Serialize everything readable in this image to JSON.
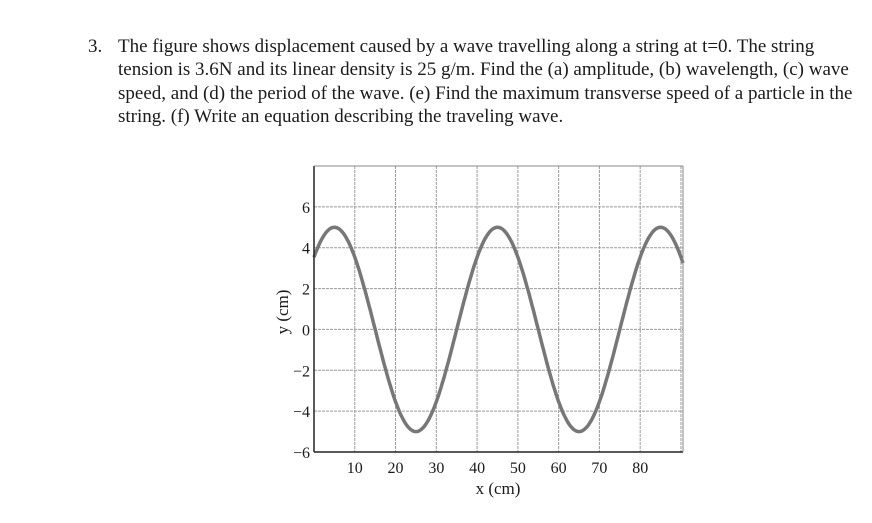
{
  "problem": {
    "number": "3.",
    "text": "The figure shows displacement caused by a wave travelling along a string at t=0. The string tension is 3.6N and its linear density is 25 g/m. Find the (a) amplitude, (b) wavelength, (c) wave speed, and (d) the period of the wave. (e) Find the maximum transverse speed of a particle in the string. (f) Write an equation describing the traveling wave."
  },
  "chart_data": {
    "type": "line",
    "title": "",
    "xlabel": "x (cm)",
    "ylabel": "y (cm)",
    "xlim": [
      0,
      90.5
    ],
    "ylim": [
      -6,
      8
    ],
    "grid": true,
    "x_ticks": [
      "10",
      "20",
      "30",
      "40",
      "50",
      "60",
      "70",
      "80"
    ],
    "y_ticks": [
      "6",
      "4",
      "2",
      "0",
      "−2",
      "−4",
      "−6"
    ],
    "series": [
      {
        "function": "y = 5 cos(2π(x − 5)/40)",
        "amplitude": 5,
        "wavelength": 40,
        "peak_x": [
          5,
          45,
          85
        ],
        "trough_x": [
          25,
          65
        ],
        "color": "#777777"
      }
    ]
  }
}
